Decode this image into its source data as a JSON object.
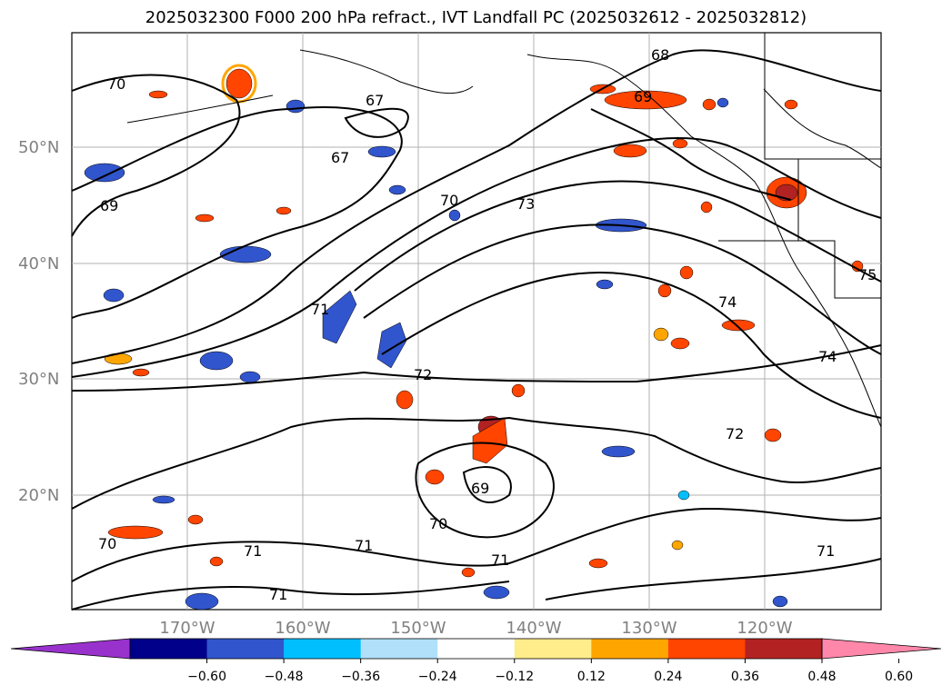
{
  "title": "2025032300 F000 200 hPa refract., IVT Landfall PC (2025032612 - 2025032812)",
  "map": {
    "lat_labels": [
      "50°N",
      "40°N",
      "30°N",
      "20°N"
    ],
    "lon_labels": [
      "170°W",
      "160°W",
      "150°W",
      "140°W",
      "130°W",
      "120°W"
    ],
    "contour_labels": [
      "70",
      "67",
      "67",
      "69",
      "68",
      "69",
      "70",
      "73",
      "71",
      "74",
      "75",
      "72",
      "74",
      "72",
      "69",
      "70",
      "71",
      "71",
      "71",
      "70",
      "71",
      "71"
    ],
    "contour_color": "#000000",
    "grid_color": "#b0b0b0",
    "land_outline_color": "#000000"
  },
  "colorbar": {
    "ticks": [
      "−0.60",
      "−0.48",
      "−0.36",
      "−0.24",
      "−0.12",
      "0.12",
      "0.24",
      "0.36",
      "0.48",
      "0.60"
    ],
    "colors": [
      "#9932cc",
      "#00008b",
      "#3155cc",
      "#00bfff",
      "#b0e0fa",
      "#ffffff",
      "#ffec8b",
      "#ffa500",
      "#ff4500",
      "#b22222",
      "#ff88aa"
    ]
  }
}
